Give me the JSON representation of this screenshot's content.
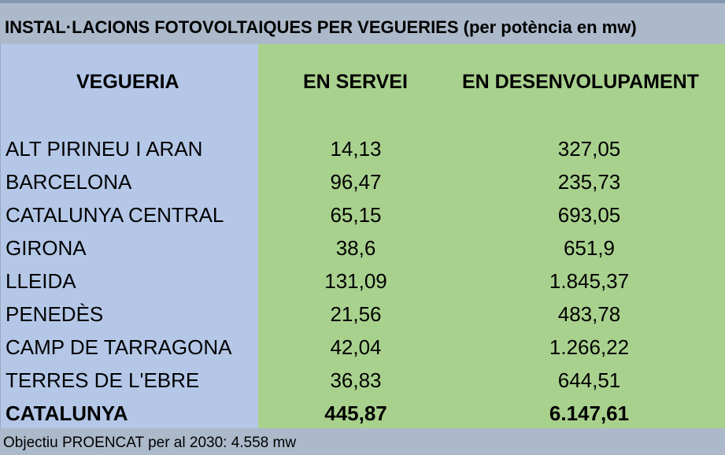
{
  "title": "INSTAL·LACIONS FOTOVOLTAIQUES PER VEGUERIES (per potència en mw)",
  "headers": {
    "vegueria": "VEGUERIA",
    "en_servei": "EN SERVEI",
    "en_desenvolupament": "EN DESENVOLUPAMENT"
  },
  "rows": [
    {
      "name": "ALT PIRINEU I ARAN",
      "en_servei": "14,13",
      "en_desenvolupament": "327,05"
    },
    {
      "name": "BARCELONA",
      "en_servei": "96,47",
      "en_desenvolupament": "235,73"
    },
    {
      "name": "CATALUNYA CENTRAL",
      "en_servei": "65,15",
      "en_desenvolupament": "693,05"
    },
    {
      "name": "GIRONA",
      "en_servei": "38,6",
      "en_desenvolupament": "651,9"
    },
    {
      "name": "LLEIDA",
      "en_servei": "131,09",
      "en_desenvolupament": "1.845,37"
    },
    {
      "name": "PENEDÈS",
      "en_servei": "21,56",
      "en_desenvolupament": "483,78"
    },
    {
      "name": "CAMP DE TARRAGONA",
      "en_servei": "42,04",
      "en_desenvolupament": "1.266,22"
    },
    {
      "name": "TERRES DE L'EBRE",
      "en_servei": "36,83",
      "en_desenvolupament": "644,51"
    }
  ],
  "total": {
    "name": "CATALUNYA",
    "en_servei": "445,87",
    "en_desenvolupament": "6.147,61"
  },
  "footer": "Objectiu PROENCAT per al 2030: 4.558 mw",
  "colors": {
    "title_bg": "#acb9ca",
    "left_col_bg": "#b4c7e7",
    "right_col_bg": "#a9d18e"
  }
}
